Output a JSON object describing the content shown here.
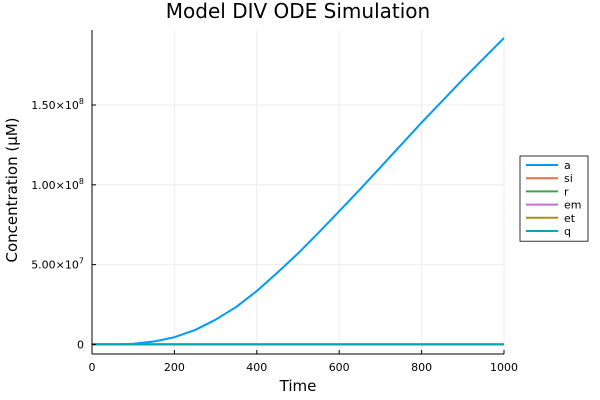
{
  "chart_data": {
    "type": "line",
    "title": "Model DIV ODE Simulation",
    "xlabel": "Time",
    "ylabel": "Concentration (µM)",
    "xlim": [
      0,
      1000
    ],
    "ylim": [
      -6000000,
      197000000
    ],
    "grid": true,
    "legend_position": "right",
    "x_ticks": [
      0,
      200,
      400,
      600,
      800,
      1000
    ],
    "x_tick_labels": [
      "0",
      "200",
      "400",
      "600",
      "800",
      "1000"
    ],
    "y_ticks": [
      0,
      50000000,
      100000000,
      150000000
    ],
    "y_tick_labels": [
      {
        "mantissa": "0",
        "exp": ""
      },
      {
        "mantissa": "5.00×10",
        "exp": "7"
      },
      {
        "mantissa": "1.00×10",
        "exp": "8"
      },
      {
        "mantissa": "1.50×10",
        "exp": "8"
      }
    ],
    "x": [
      0,
      50,
      100,
      150,
      200,
      250,
      300,
      350,
      400,
      450,
      500,
      550,
      600,
      650,
      700,
      750,
      800,
      850,
      900,
      950,
      1000
    ],
    "series": [
      {
        "name": "a",
        "color": "#009af9",
        "values": [
          0,
          0,
          400000,
          1800000,
          4500000,
          9000000,
          15500000,
          23500000,
          33500000,
          45000000,
          57000000,
          70000000,
          83500000,
          97000000,
          111000000,
          125000000,
          139000000,
          152500000,
          166000000,
          179000000,
          192000000
        ]
      },
      {
        "name": "si",
        "color": "#e26f46",
        "values": [
          0,
          0,
          0,
          0,
          0,
          0,
          0,
          0,
          0,
          0,
          0,
          0,
          0,
          0,
          0,
          0,
          0,
          0,
          0,
          0,
          0
        ]
      },
      {
        "name": "r",
        "color": "#3da44d",
        "values": [
          0,
          0,
          0,
          0,
          0,
          0,
          0,
          0,
          0,
          0,
          0,
          0,
          0,
          0,
          0,
          0,
          0,
          0,
          0,
          0,
          0
        ]
      },
      {
        "name": "em",
        "color": "#c271d2",
        "values": [
          0,
          0,
          0,
          0,
          0,
          0,
          0,
          0,
          0,
          0,
          0,
          0,
          0,
          0,
          0,
          0,
          0,
          0,
          0,
          0,
          0
        ]
      },
      {
        "name": "et",
        "color": "#ac8e18",
        "values": [
          0,
          0,
          0,
          0,
          0,
          0,
          0,
          0,
          0,
          0,
          0,
          0,
          0,
          0,
          0,
          0,
          0,
          0,
          0,
          0,
          0
        ]
      },
      {
        "name": "q",
        "color": "#00a9ad",
        "values": [
          0,
          0,
          0,
          0,
          0,
          0,
          0,
          0,
          0,
          0,
          0,
          0,
          0,
          0,
          0,
          0,
          0,
          0,
          0,
          0,
          0
        ]
      }
    ]
  }
}
